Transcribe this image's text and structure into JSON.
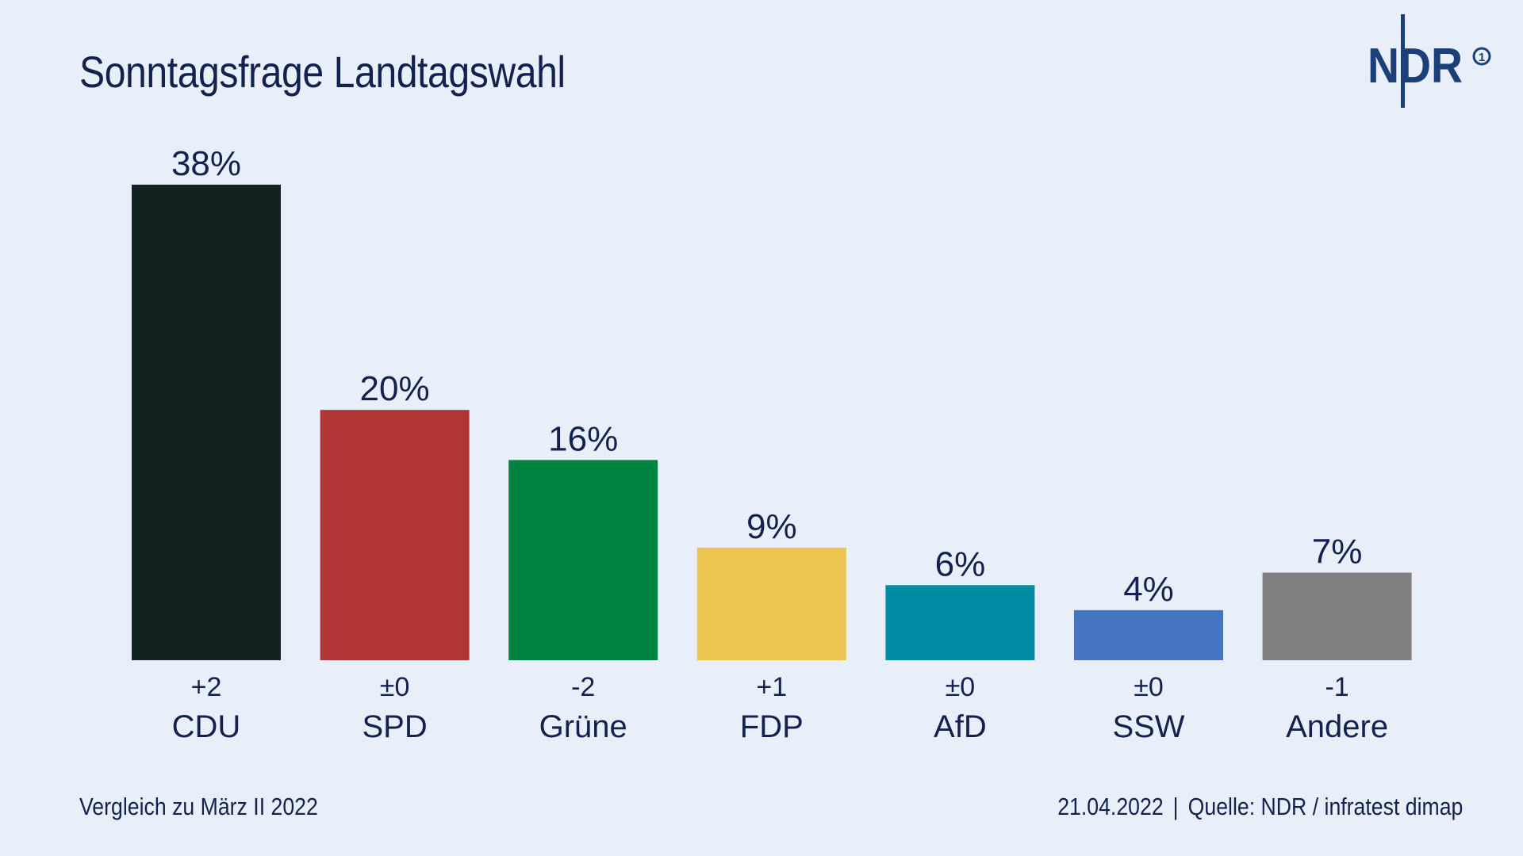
{
  "header": {
    "title": "Sonntagsfrage Landtagswahl",
    "logo_text": "NDR",
    "logo_badge": "1"
  },
  "footer": {
    "comparison": "Vergleich zu März II 2022",
    "date": "21.04.2022",
    "separator": "|",
    "source": "Quelle: NDR / infratest dimap"
  },
  "colors": {
    "background": "#e8eff8",
    "text": "#14214f"
  },
  "chart_data": {
    "type": "bar",
    "categories": [
      "CDU",
      "SPD",
      "Grüne",
      "FDP",
      "AfD",
      "SSW",
      "Andere"
    ],
    "values": [
      38,
      20,
      16,
      9,
      6,
      4,
      7
    ],
    "value_labels": [
      "38%",
      "20%",
      "16%",
      "9%",
      "6%",
      "4%",
      "7%"
    ],
    "changes": [
      "+2",
      "±0",
      "-2",
      "+1",
      "±0",
      "±0",
      "-1"
    ],
    "colors": [
      "#132221",
      "#b23535",
      "#008241",
      "#ecc450",
      "#008da3",
      "#4474c3",
      "#808080"
    ],
    "unit": "%",
    "ylim": [
      0,
      38
    ],
    "grid": false,
    "legend": "none"
  }
}
